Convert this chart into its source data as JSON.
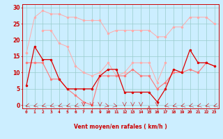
{
  "x": [
    0,
    1,
    2,
    3,
    4,
    5,
    6,
    7,
    8,
    9,
    10,
    11,
    12,
    13,
    14,
    15,
    16,
    17,
    18,
    19,
    20,
    21,
    22,
    23
  ],
  "line_rafales_top": [
    16,
    27,
    29,
    28,
    28,
    27,
    27,
    26,
    26,
    26,
    22,
    23,
    23,
    23,
    23,
    23,
    21,
    21,
    24,
    24,
    27,
    27,
    27,
    25
  ],
  "line_rafales_mid": [
    16,
    null,
    23,
    23,
    19,
    18,
    12,
    10,
    9,
    10,
    13,
    9,
    10,
    13,
    13,
    13,
    7,
    13,
    null,
    null,
    null,
    null,
    null,
    null
  ],
  "line_vent_moyen": [
    13,
    13,
    13,
    8,
    8,
    5,
    3,
    1,
    0,
    9,
    9,
    9,
    9,
    11,
    9,
    9,
    5,
    7,
    10,
    10,
    11,
    10,
    13,
    12
  ],
  "line_vent_rafales": [
    6,
    18,
    14,
    14,
    8,
    5,
    5,
    5,
    5,
    9,
    11,
    11,
    4,
    4,
    4,
    4,
    1,
    5,
    11,
    10,
    17,
    13,
    13,
    12
  ],
  "color_light_pink": "#ffaaaa",
  "color_mid_red": "#ff7777",
  "color_dark_red": "#dd0000",
  "bg_color": "#cceeff",
  "grid_color": "#99cccc",
  "xlabel": "Vent moyen/en rafales ( km/h )",
  "yticks": [
    0,
    5,
    10,
    15,
    20,
    25,
    30
  ],
  "ylim_min": -1,
  "ylim_max": 31,
  "xlim_min": -0.5,
  "xlim_max": 23.5
}
